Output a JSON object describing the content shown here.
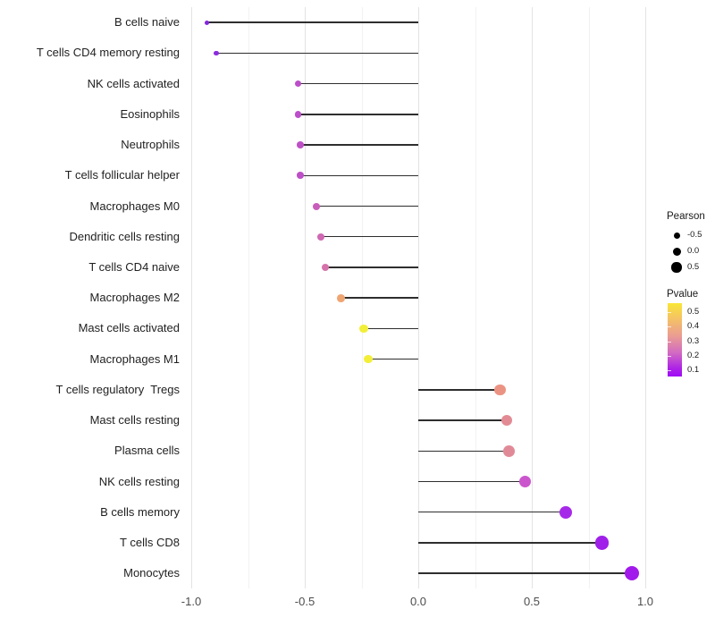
{
  "chart_data": {
    "type": "lollipop",
    "title": "",
    "xlabel": "",
    "ylabel": "",
    "xlim": [
      -1.04,
      1.05
    ],
    "grid": "major+minor",
    "x_ticks": [
      -1.0,
      -0.5,
      0.0,
      0.5,
      1.0
    ],
    "x_tick_labels": [
      "-1.0",
      "-0.5",
      "0.0",
      "0.5",
      "1.0"
    ],
    "x_minor_ticks": [
      -0.75,
      -0.25,
      0.25,
      0.75
    ],
    "baseline": 0.0,
    "points": [
      {
        "label": "B cells naive",
        "pearson": -0.93,
        "pvalue": 0.02,
        "color": "#8326de"
      },
      {
        "label": "T cells CD4 memory resting",
        "pearson": -0.89,
        "pvalue": 0.03,
        "color": "#8c2be0"
      },
      {
        "label": "NK cells activated",
        "pearson": -0.53,
        "pvalue": 0.14,
        "color": "#bc4ec9"
      },
      {
        "label": "Eosinophils",
        "pearson": -0.53,
        "pvalue": 0.14,
        "color": "#bc4ec9"
      },
      {
        "label": "Neutrophils",
        "pearson": -0.52,
        "pvalue": 0.15,
        "color": "#be51c6"
      },
      {
        "label": "T cells follicular helper",
        "pearson": -0.52,
        "pvalue": 0.15,
        "color": "#bd50c7"
      },
      {
        "label": "Macrophages M0",
        "pearson": -0.45,
        "pvalue": 0.18,
        "color": "#c95dbb"
      },
      {
        "label": "Dendritic cells resting",
        "pearson": -0.43,
        "pvalue": 0.2,
        "color": "#d068b3"
      },
      {
        "label": "T cells CD4 naive",
        "pearson": -0.41,
        "pvalue": 0.22,
        "color": "#d673ab"
      },
      {
        "label": "Macrophages M2",
        "pearson": -0.34,
        "pvalue": 0.37,
        "color": "#efa572"
      },
      {
        "label": "Mast cells activated",
        "pearson": -0.24,
        "pvalue": 0.5,
        "color": "#f2ef39"
      },
      {
        "label": "Macrophages M1",
        "pearson": -0.22,
        "pvalue": 0.52,
        "color": "#f3ee38"
      },
      {
        "label": "T cells regulatory  Tregs",
        "pearson": 0.36,
        "pvalue": 0.3,
        "color": "#eb9383"
      },
      {
        "label": "Mast cells resting",
        "pearson": 0.39,
        "pvalue": 0.27,
        "color": "#e28b94"
      },
      {
        "label": "Plasma cells",
        "pearson": 0.4,
        "pvalue": 0.27,
        "color": "#e18a97"
      },
      {
        "label": "NK cells resting",
        "pearson": 0.47,
        "pvalue": 0.16,
        "color": "#cb55cd"
      },
      {
        "label": "B cells memory",
        "pearson": 0.65,
        "pvalue": 0.06,
        "color": "#a629e9"
      },
      {
        "label": "T cells CD8",
        "pearson": 0.81,
        "pvalue": 0.04,
        "color": "#a01fe9"
      },
      {
        "label": "Monocytes",
        "pearson": 0.94,
        "pvalue": 0.02,
        "color": "#a219ec"
      }
    ],
    "legend": {
      "size": {
        "title": "Pearson",
        "entries": [
          {
            "label": "-0.5",
            "r": 3.5
          },
          {
            "label": "0.0",
            "r": 4.5
          },
          {
            "label": "0.5",
            "r": 5.6
          }
        ],
        "dot_color": "#000000"
      },
      "color": {
        "title": "Pvalue",
        "tick_labels": [
          "0.5",
          "0.4",
          "0.3",
          "0.2",
          "0.1"
        ],
        "gradient_top_to_bottom": [
          "#f9e636",
          "#f4c167",
          "#ea9c93",
          "#d169c3",
          "#ab1fe8",
          "#9e0bf5"
        ],
        "value_range_top_to_bottom": [
          0.56,
          0.06
        ]
      }
    }
  }
}
